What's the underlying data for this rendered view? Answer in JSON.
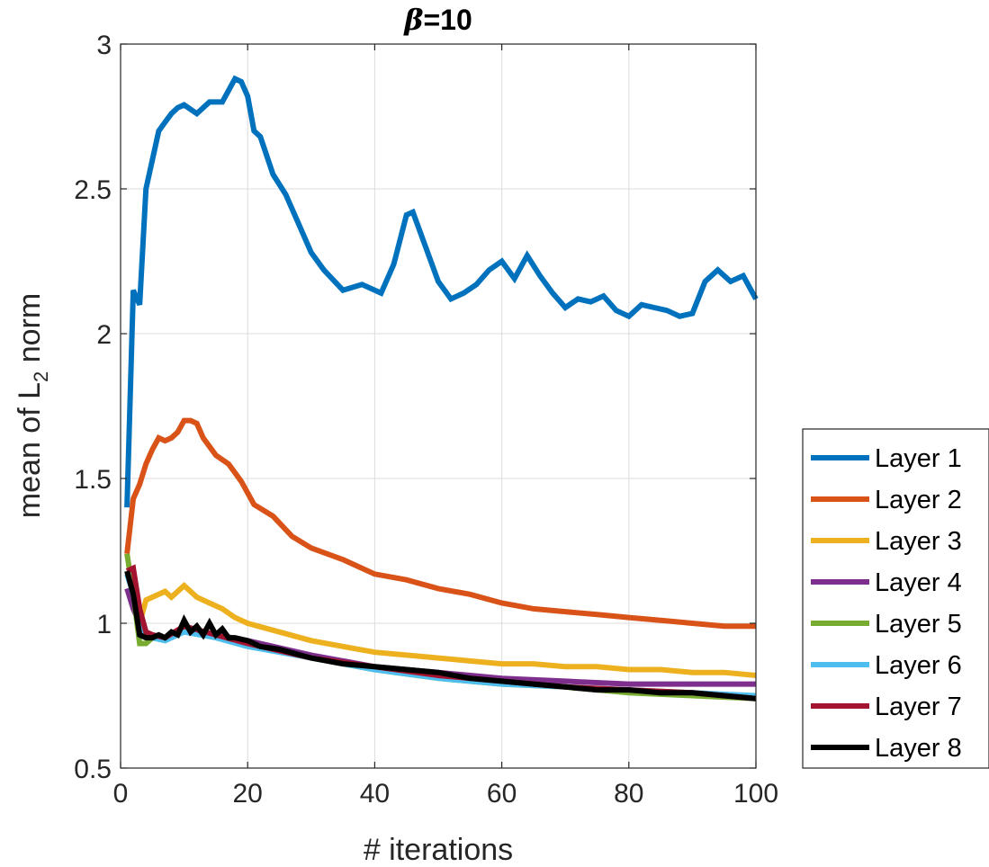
{
  "chart_data": {
    "type": "line",
    "title_symbol": "β",
    "title_rest": "=10",
    "xlabel": "# iterations",
    "ylabel_prefix": "mean of L",
    "ylabel_sub": "2",
    "ylabel_suffix": " norm",
    "xlim": [
      0,
      100
    ],
    "ylim": [
      0.5,
      3
    ],
    "xticks": [
      0,
      20,
      40,
      60,
      80,
      100
    ],
    "yticks": [
      0.5,
      1,
      1.5,
      2,
      2.5,
      3
    ],
    "xtick_labels": [
      "0",
      "20",
      "40",
      "60",
      "80",
      "100"
    ],
    "ytick_labels": [
      "0.5",
      "1",
      "1.5",
      "2",
      "2.5",
      "3"
    ],
    "grid": true,
    "legend_position": "right",
    "series": [
      {
        "name": "Layer 1",
        "color": "#0072BD",
        "x": [
          1,
          2,
          3,
          4,
          5,
          6,
          7,
          8,
          9,
          10,
          12,
          14,
          16,
          18,
          19,
          20,
          21,
          22,
          24,
          26,
          28,
          30,
          32,
          35,
          38,
          41,
          43,
          45,
          46,
          48,
          50,
          52,
          54,
          56,
          58,
          60,
          62,
          64,
          66,
          68,
          70,
          72,
          74,
          76,
          78,
          80,
          82,
          84,
          86,
          88,
          90,
          92,
          94,
          96,
          98,
          100
        ],
        "y": [
          1.4,
          2.15,
          2.1,
          2.5,
          2.6,
          2.7,
          2.73,
          2.76,
          2.78,
          2.79,
          2.76,
          2.8,
          2.8,
          2.88,
          2.87,
          2.82,
          2.7,
          2.68,
          2.55,
          2.48,
          2.38,
          2.28,
          2.22,
          2.15,
          2.17,
          2.14,
          2.24,
          2.41,
          2.42,
          2.3,
          2.18,
          2.12,
          2.14,
          2.17,
          2.22,
          2.25,
          2.19,
          2.27,
          2.2,
          2.14,
          2.09,
          2.12,
          2.11,
          2.13,
          2.08,
          2.06,
          2.1,
          2.09,
          2.08,
          2.06,
          2.07,
          2.18,
          2.22,
          2.18,
          2.2,
          2.12
        ]
      },
      {
        "name": "Layer 2",
        "color": "#D95319",
        "x": [
          1,
          2,
          3,
          4,
          5,
          6,
          7,
          8,
          9,
          10,
          11,
          12,
          13,
          15,
          17,
          19,
          21,
          24,
          27,
          30,
          35,
          40,
          45,
          50,
          55,
          60,
          65,
          70,
          75,
          80,
          85,
          90,
          95,
          100
        ],
        "y": [
          1.24,
          1.43,
          1.48,
          1.55,
          1.6,
          1.64,
          1.63,
          1.64,
          1.66,
          1.7,
          1.7,
          1.69,
          1.64,
          1.58,
          1.55,
          1.49,
          1.41,
          1.37,
          1.3,
          1.26,
          1.22,
          1.17,
          1.15,
          1.12,
          1.1,
          1.07,
          1.05,
          1.04,
          1.03,
          1.02,
          1.01,
          1.0,
          0.99,
          0.99
        ]
      },
      {
        "name": "Layer 3",
        "color": "#EDB120",
        "x": [
          1,
          2,
          3,
          4,
          5,
          7,
          8,
          10,
          12,
          14,
          16,
          18,
          20,
          25,
          30,
          35,
          40,
          45,
          50,
          55,
          60,
          65,
          70,
          75,
          80,
          85,
          90,
          95,
          100
        ],
        "y": [
          1.17,
          1.15,
          1.0,
          1.08,
          1.09,
          1.11,
          1.09,
          1.13,
          1.09,
          1.07,
          1.05,
          1.02,
          1.0,
          0.97,
          0.94,
          0.92,
          0.9,
          0.89,
          0.88,
          0.87,
          0.86,
          0.86,
          0.85,
          0.85,
          0.84,
          0.84,
          0.83,
          0.83,
          0.82
        ]
      },
      {
        "name": "Layer 4",
        "color": "#7E2F8E",
        "x": [
          1,
          2,
          3,
          4,
          5,
          7,
          10,
          15,
          20,
          30,
          40,
          50,
          60,
          70,
          80,
          90,
          100
        ],
        "y": [
          1.12,
          1.05,
          1.0,
          0.97,
          0.96,
          0.95,
          0.98,
          0.96,
          0.94,
          0.89,
          0.85,
          0.83,
          0.81,
          0.8,
          0.79,
          0.79,
          0.79
        ]
      },
      {
        "name": "Layer 5",
        "color": "#77AC30",
        "x": [
          1,
          2,
          3,
          4,
          5,
          7,
          10,
          15,
          20,
          30,
          40,
          50,
          60,
          70,
          80,
          90,
          100
        ],
        "y": [
          1.24,
          1.1,
          0.93,
          0.93,
          0.95,
          0.95,
          0.98,
          0.95,
          0.93,
          0.88,
          0.84,
          0.81,
          0.79,
          0.78,
          0.76,
          0.75,
          0.74
        ]
      },
      {
        "name": "Layer 6",
        "color": "#4DBEEE",
        "x": [
          1,
          2,
          3,
          4,
          5,
          7,
          10,
          15,
          20,
          30,
          40,
          50,
          60,
          70,
          80,
          90,
          100
        ],
        "y": [
          1.17,
          1.1,
          0.98,
          0.96,
          0.95,
          0.94,
          0.97,
          0.95,
          0.92,
          0.88,
          0.84,
          0.81,
          0.79,
          0.78,
          0.77,
          0.76,
          0.75
        ]
      },
      {
        "name": "Layer 7",
        "color": "#A2142F",
        "x": [
          1,
          2,
          3,
          4,
          5,
          7,
          10,
          15,
          20,
          30,
          40,
          50,
          60,
          70,
          80,
          90,
          100
        ],
        "y": [
          1.18,
          1.19,
          1.05,
          0.97,
          0.96,
          0.95,
          0.99,
          0.96,
          0.93,
          0.88,
          0.85,
          0.82,
          0.8,
          0.78,
          0.77,
          0.76,
          0.74
        ]
      },
      {
        "name": "Layer 8",
        "color": "#000000",
        "x": [
          1,
          2,
          3,
          4,
          5,
          6,
          7,
          8,
          9,
          10,
          11,
          12,
          13,
          14,
          15,
          16,
          17,
          18,
          20,
          22,
          25,
          30,
          35,
          40,
          45,
          50,
          55,
          60,
          65,
          70,
          75,
          80,
          85,
          90,
          95,
          100
        ],
        "y": [
          1.18,
          1.1,
          0.96,
          0.95,
          0.95,
          0.96,
          0.95,
          0.97,
          0.96,
          1.01,
          0.97,
          0.99,
          0.96,
          1.0,
          0.96,
          0.98,
          0.95,
          0.95,
          0.94,
          0.92,
          0.91,
          0.88,
          0.86,
          0.85,
          0.84,
          0.83,
          0.81,
          0.8,
          0.79,
          0.78,
          0.77,
          0.77,
          0.76,
          0.76,
          0.75,
          0.74
        ]
      }
    ]
  }
}
